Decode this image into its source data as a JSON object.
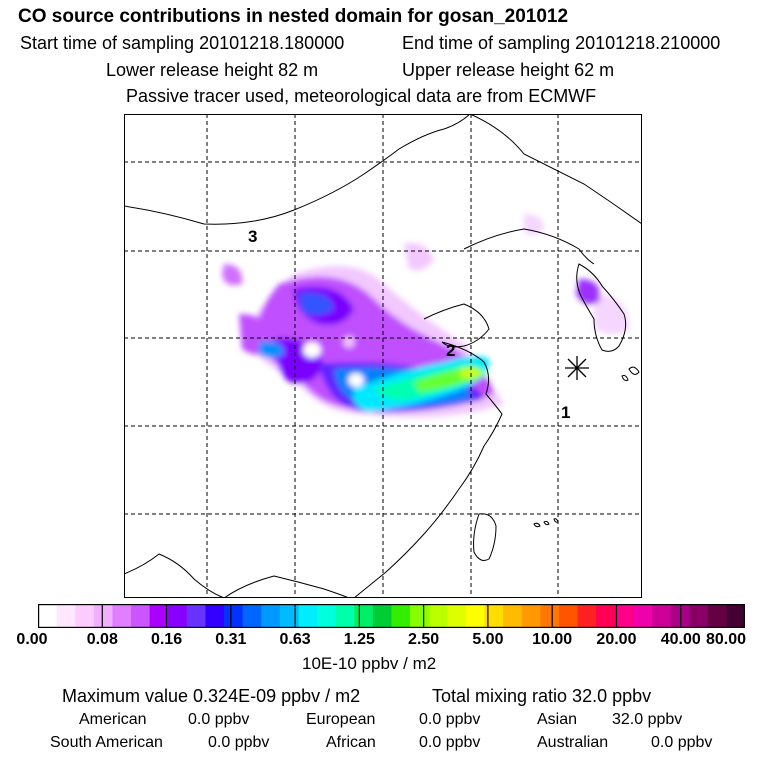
{
  "header": {
    "title": "CO  source contributions in nested domain for gosan_201012",
    "start_time": "Start time of sampling 20101218.180000",
    "end_time": "End time of sampling 20101218.210000",
    "lower_height": "Lower release height   82 m",
    "upper_height": "Upper release height   62 m",
    "tracer_note": "Passive tracer used, meteorological data are from ECMWF"
  },
  "map": {
    "region_labels": [
      "1",
      "2",
      "3"
    ],
    "receptor_marker": "asterisk-marker",
    "grid": "dashed"
  },
  "colorbar": {
    "tick_labels": [
      "0.00",
      "0.08",
      "0.16",
      "0.31",
      "0.63",
      "1.25",
      "2.50",
      "5.00",
      "10.00",
      "20.00",
      "40.00",
      "80.00"
    ],
    "unit": "10E-10 ppbv / m2",
    "colors": [
      "#ffffff",
      "#ffe8ff",
      "#ffccff",
      "#f0b0ff",
      "#e080ff",
      "#cc55ff",
      "#aa00ff",
      "#8800ff",
      "#6633ff",
      "#3300ff",
      "#0033ff",
      "#0066ff",
      "#0099ff",
      "#00bbff",
      "#00eeff",
      "#00ffdd",
      "#00ffaa",
      "#00ee66",
      "#00cc33",
      "#33ee00",
      "#88ff00",
      "#bbff00",
      "#ddff00",
      "#ffff00",
      "#ffdd00",
      "#ffbb00",
      "#ff9900",
      "#ff7700",
      "#ff5500",
      "#ff2222",
      "#ff0055",
      "#ff0088",
      "#ee00aa",
      "#cc0099",
      "#aa0088",
      "#880066",
      "#660044",
      "#440033"
    ]
  },
  "stats": {
    "max_value": "Maximum value  0.324E-09 ppbv / m2",
    "total_mixing": "Total mixing ratio       32.0 ppbv",
    "american_label": "American",
    "american_value": "0.0 ppbv",
    "european_label": "European",
    "european_value": "0.0 ppbv",
    "asian_label": "Asian",
    "asian_value": "32.0 ppbv",
    "south_american_label": "South American",
    "south_american_value": "0.0 ppbv",
    "african_label": "African",
    "african_value": "0.0 ppbv",
    "australian_label": "Australian",
    "australian_value": "0.0 ppbv"
  }
}
